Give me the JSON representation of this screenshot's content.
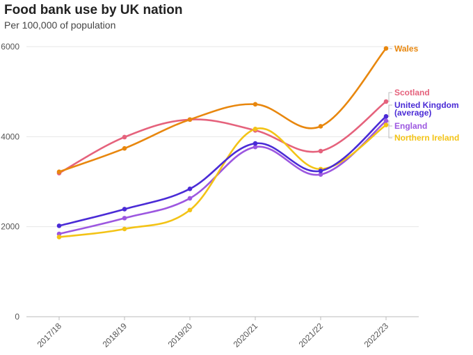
{
  "header": {
    "title": "Food bank use by UK nation",
    "subtitle": "Per 100,000 of population"
  },
  "chart_data": {
    "type": "line",
    "title": "Food bank use by UK nation",
    "subtitle": "Per 100,000 of population",
    "xlabel": "",
    "ylabel": "",
    "categories": [
      "2017/18",
      "2018/19",
      "2019/20",
      "2020/21",
      "2021/22",
      "2022/23"
    ],
    "yticks": [
      0,
      2000,
      4000,
      6000
    ],
    "ylim": [
      0,
      6000
    ],
    "grid": true,
    "legend": "direct-labels-right",
    "series": [
      {
        "name": "Wales",
        "color": "#e8870e",
        "values": [
          3220,
          3740,
          4380,
          4720,
          4230,
          5960
        ]
      },
      {
        "name": "Scotland",
        "color": "#e5627c",
        "values": [
          3190,
          3990,
          4380,
          4140,
          3680,
          4780
        ]
      },
      {
        "name": "United Kingdom (average)",
        "color": "#4a2bd6",
        "values": [
          2020,
          2390,
          2840,
          3850,
          3240,
          4450
        ]
      },
      {
        "name": "England",
        "color": "#9c57e0",
        "values": [
          1840,
          2190,
          2630,
          3770,
          3160,
          4350
        ]
      },
      {
        "name": "Northern Ireland",
        "color": "#f3c316",
        "values": [
          1770,
          1950,
          2370,
          4170,
          3280,
          4260
        ]
      }
    ],
    "labels": [
      {
        "series": "Wales",
        "lines": [
          "Wales"
        ]
      },
      {
        "series": "Scotland",
        "lines": [
          "Scotland"
        ]
      },
      {
        "series": "United Kingdom (average)",
        "lines": [
          "United Kingdom",
          "(average)"
        ]
      },
      {
        "series": "England",
        "lines": [
          "England"
        ]
      },
      {
        "series": "Northern Ireland",
        "lines": [
          "Northern Ireland"
        ]
      }
    ]
  }
}
